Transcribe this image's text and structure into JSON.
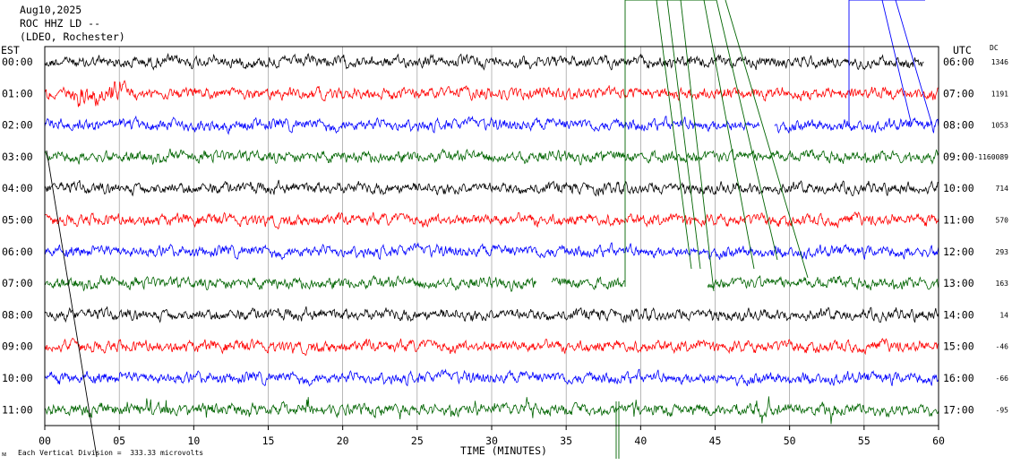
{
  "header": {
    "date": "Aug10,2025",
    "station": "ROC HHZ LD --",
    "network": "(LDEO, Rochester)"
  },
  "labels": {
    "left_zone": "EST",
    "right_zone": "UTC",
    "dc_header": "DC",
    "xlabel": "TIME (MINUTES)",
    "scale_note": "Each Vertical Division =  333.33 microvolts",
    "corner_mark": "ᴍ"
  },
  "chart_data": {
    "type": "line",
    "title": "",
    "xlabel": "TIME (MINUTES)",
    "xlim": [
      0,
      60
    ],
    "x_ticks": [
      "00",
      "05",
      "10",
      "15",
      "20",
      "25",
      "30",
      "35",
      "40",
      "45",
      "50",
      "55",
      "60"
    ],
    "grid": true,
    "trace_colors": [
      "#000000",
      "#ff0000",
      "#0000ff",
      "#006400"
    ],
    "traces": [
      {
        "local": "00:00",
        "utc": "06:00",
        "dc": "1346",
        "color": "#000000",
        "start": 0,
        "end": 59
      },
      {
        "local": "01:00",
        "utc": "07:00",
        "dc": "1191",
        "color": "#ff0000",
        "start": 0,
        "end": 60
      },
      {
        "local": "02:00",
        "utc": "08:00",
        "dc": "1053",
        "color": "#0000ff",
        "start": 0,
        "end": 60,
        "gaps": [
          [
            48,
            49
          ]
        ]
      },
      {
        "local": "03:00",
        "utc": "09:00",
        "dc": "-1160089",
        "color": "#006400",
        "start": 0,
        "end": 60
      },
      {
        "local": "04:00",
        "utc": "10:00",
        "dc": "714",
        "color": "#000000",
        "start": 0,
        "end": 60
      },
      {
        "local": "05:00",
        "utc": "11:00",
        "dc": "570",
        "color": "#ff0000",
        "start": 0,
        "end": 60
      },
      {
        "local": "06:00",
        "utc": "12:00",
        "dc": "293",
        "color": "#0000ff",
        "start": 0,
        "end": 60
      },
      {
        "local": "07:00",
        "utc": "13:00",
        "dc": "163",
        "color": "#006400",
        "start": 0,
        "end": 60,
        "gaps": [
          [
            33,
            34
          ],
          [
            39,
            44.5
          ]
        ]
      },
      {
        "local": "08:00",
        "utc": "14:00",
        "dc": "14",
        "color": "#000000",
        "start": 0,
        "end": 60
      },
      {
        "local": "09:00",
        "utc": "15:00",
        "dc": "-46",
        "color": "#ff0000",
        "start": 0,
        "end": 60
      },
      {
        "local": "10:00",
        "utc": "16:00",
        "dc": "-66",
        "color": "#0000ff",
        "start": 0,
        "end": 60
      },
      {
        "local": "11:00",
        "utc": "17:00",
        "dc": "-95",
        "color": "#006400",
        "start": 0,
        "end": 60
      }
    ]
  }
}
